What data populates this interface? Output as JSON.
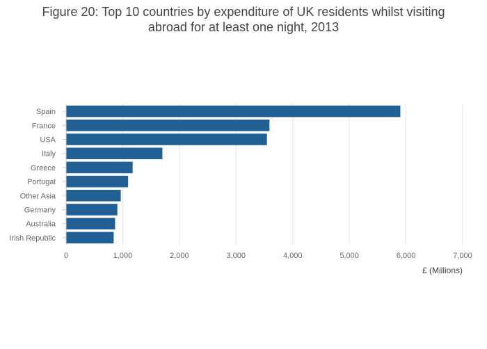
{
  "chart_data": {
    "type": "bar",
    "orientation": "horizontal",
    "title_line1": "Figure 20: Top 10 countries by expenditure of UK residents whilst visiting",
    "title_line2": "abroad for at least one night, 2013",
    "categories": [
      "Spain",
      "France",
      "USA",
      "Italy",
      "Greece",
      "Portugal",
      "Other Asia",
      "Germany",
      "Australia",
      "Irish Republic"
    ],
    "values": [
      5900,
      3590,
      3545,
      1700,
      1175,
      1095,
      965,
      905,
      865,
      840
    ],
    "xlabel": "£ (Millions)",
    "ylabel": "",
    "xlim": [
      0,
      7000
    ],
    "xticks": [
      0,
      1000,
      2000,
      3000,
      4000,
      5000,
      6000,
      7000
    ],
    "xtick_labels": [
      "0",
      "1,000",
      "2,000",
      "3,000",
      "4,000",
      "5,000",
      "6,000",
      "7,000"
    ],
    "grid": true,
    "bar_color": "#206095"
  }
}
